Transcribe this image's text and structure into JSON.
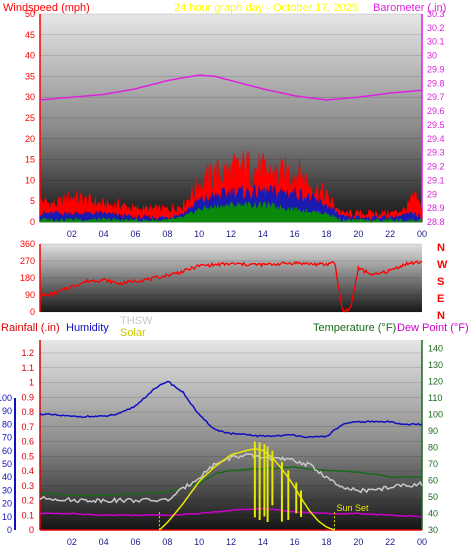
{
  "header": {
    "left": "Windspeed (mph)",
    "center": "24 hour graph day - October 17, 2025",
    "right": "Barometer (.in)"
  },
  "colors": {
    "wind": "#ff0000",
    "barometer": "#dd22dd",
    "title": "#ffff00",
    "rain": "#dd0000",
    "humidity": "#1010c0",
    "thsw": "#c8c8c8",
    "solar": "#e8e800",
    "temperature": "#1a6a1a",
    "dewpoint": "#cc00cc",
    "wind_avg": "#1a1ab0",
    "wind_low": "#0a8a0a"
  },
  "chart_data": [
    {
      "type": "area",
      "name": "wind-panel",
      "title": "24 hour graph day - October 17, 2025",
      "ylabel_left": "Windspeed (mph)",
      "ylabel_right": "Barometer (.in)",
      "x_ticks": [
        "02",
        "04",
        "06",
        "08",
        "10",
        "12",
        "14",
        "16",
        "18",
        "20",
        "22",
        "00"
      ],
      "x_range": [
        0,
        24
      ],
      "ylim_left": [
        0,
        50
      ],
      "yticks_left": [
        0,
        5,
        10,
        15,
        20,
        25,
        30,
        35,
        40,
        45,
        50
      ],
      "ylim_right": [
        28.8,
        30.3
      ],
      "yticks_right": [
        "28.8",
        "28.9",
        "29",
        "29.1",
        "29.2",
        "29.3",
        "29.4",
        "29.5",
        "29.6",
        "29.7",
        "29.8",
        "29.9",
        "30",
        "30.1",
        "30.2",
        "30.3"
      ],
      "series": [
        {
          "name": "Wind gust",
          "hours": [
            0,
            1,
            2,
            3,
            4,
            5,
            6,
            7,
            8,
            9,
            10,
            11,
            12,
            13,
            14,
            15,
            16,
            17,
            18,
            19,
            20,
            21,
            22,
            23,
            23.5,
            24
          ],
          "values": [
            5,
            4,
            6,
            5,
            4,
            4,
            3,
            3,
            3,
            4,
            9,
            11,
            12,
            13,
            12,
            11,
            12,
            9,
            6,
            2,
            2,
            2,
            2,
            3,
            6,
            3
          ]
        },
        {
          "name": "Wind avg",
          "hours": [
            0,
            2,
            4,
            6,
            8,
            9,
            10,
            12,
            14,
            16,
            18,
            19,
            20,
            22,
            23.5,
            24
          ],
          "values": [
            2,
            2,
            2,
            1,
            1,
            2,
            5,
            7,
            7,
            7,
            4,
            1,
            1,
            1,
            2,
            1
          ]
        },
        {
          "name": "Wind low",
          "hours": [
            0,
            2,
            4,
            6,
            8,
            9,
            10,
            12,
            14,
            16,
            18,
            19,
            20,
            22,
            24
          ],
          "values": [
            0.5,
            0.5,
            0.5,
            0.3,
            0.3,
            1,
            3,
            4,
            4,
            3,
            2,
            0.3,
            0.3,
            0.3,
            0.3
          ]
        },
        {
          "name": "Barometer",
          "hours": [
            0,
            2,
            4,
            6,
            8,
            10,
            11,
            12,
            14,
            16,
            18,
            20,
            22,
            24
          ],
          "values": [
            29.68,
            29.7,
            29.72,
            29.76,
            29.82,
            29.86,
            29.85,
            29.82,
            29.76,
            29.71,
            29.68,
            29.7,
            29.73,
            29.75
          ]
        }
      ]
    },
    {
      "type": "line",
      "name": "direction-panel",
      "ylim": [
        0,
        360
      ],
      "yticks": [
        0,
        90,
        180,
        270,
        360
      ],
      "right_labels": [
        "N",
        "W",
        "S",
        "E",
        "N"
      ],
      "series": [
        {
          "name": "Wind direction",
          "hours": [
            0,
            1,
            2,
            3,
            4,
            5,
            6,
            7,
            8,
            9,
            10,
            12,
            14,
            16,
            17,
            18,
            18.5,
            19,
            19.5,
            20,
            21,
            22,
            23,
            24
          ],
          "values": [
            85,
            100,
            135,
            165,
            170,
            150,
            165,
            175,
            195,
            215,
            245,
            255,
            250,
            260,
            255,
            250,
            270,
            5,
            15,
            230,
            195,
            220,
            255,
            265
          ]
        }
      ]
    },
    {
      "type": "line",
      "name": "weather-panel",
      "ylabel_left": "Rainfall (.in)",
      "ylabel_left2": "Humidity",
      "ylabel_right": "Temperature (°F)",
      "ylabel_right2": "Dew Point (°F)",
      "legend_extra": [
        "THSW",
        "Solar"
      ],
      "annotation": "Sun Set",
      "x_ticks": [
        "02",
        "04",
        "06",
        "08",
        "10",
        "12",
        "14",
        "16",
        "18",
        "20",
        "22",
        "00"
      ],
      "humidity_ticks": [
        0,
        10,
        20,
        30,
        40,
        50,
        60,
        70,
        80,
        90,
        100
      ],
      "rain_ticks": [
        "0",
        "0.1",
        "0.2",
        "0.3",
        "0.4",
        "0.5",
        "0.6",
        "0.7",
        "0.8",
        "0.9",
        "1",
        "1.1",
        "1.2"
      ],
      "temp_ticks": [
        30,
        40,
        50,
        60,
        70,
        80,
        90,
        100,
        110,
        120,
        130,
        140
      ],
      "ylim_rain": [
        0,
        1.2
      ],
      "ylim_temp": [
        30,
        145
      ],
      "series": [
        {
          "name": "Humidity",
          "hours": [
            0,
            2,
            4,
            5,
            6,
            7,
            8,
            9,
            10,
            11,
            12,
            14,
            16,
            17,
            18,
            19,
            20,
            22,
            23,
            24
          ],
          "values": [
            88,
            86,
            86,
            88,
            94,
            105,
            113,
            104,
            87,
            76,
            73,
            71,
            72,
            70,
            71,
            80,
            82,
            82,
            80,
            80
          ]
        },
        {
          "name": "Temperature",
          "hours": [
            0,
            1,
            2,
            4,
            6,
            8,
            10,
            11,
            12,
            14,
            16,
            18,
            20,
            21,
            22,
            23,
            24
          ],
          "values": [
            52,
            52,
            51,
            51,
            52,
            53,
            58,
            64,
            66,
            67,
            68,
            66,
            65,
            64,
            62,
            62,
            62
          ]
        },
        {
          "name": "THSW",
          "hours": [
            0,
            1,
            2,
            4,
            6,
            8,
            9,
            10,
            11,
            12,
            13,
            14,
            16,
            17,
            18,
            19,
            20,
            21,
            22,
            24
          ],
          "values": [
            49,
            49,
            48,
            48,
            48,
            48,
            55,
            62,
            70,
            74,
            75,
            74,
            72,
            69,
            62,
            55,
            54,
            54,
            56,
            58
          ]
        },
        {
          "name": "Dew Point",
          "hours": [
            0,
            2,
            4,
            6,
            8,
            10,
            12,
            14,
            16,
            18,
            20,
            22,
            24
          ],
          "values": [
            40,
            40,
            39,
            39,
            39,
            40,
            42,
            43,
            41,
            40,
            40,
            39,
            38
          ]
        },
        {
          "name": "Solar",
          "hours": [
            7.5,
            8,
            9,
            10,
            11,
            12,
            13,
            13.5,
            14,
            14.5,
            15,
            15.5,
            16,
            16.5,
            17,
            17.5,
            18,
            18.5
          ],
          "values": [
            0,
            0.05,
            0.18,
            0.33,
            0.43,
            0.51,
            0.54,
            0.55,
            0.54,
            0.5,
            0.44,
            0.37,
            0.29,
            0.2,
            0.12,
            0.06,
            0.02,
            0
          ]
        },
        {
          "name": "Rainfall",
          "hours": [
            0,
            24
          ],
          "values": [
            0,
            0
          ]
        }
      ]
    }
  ]
}
